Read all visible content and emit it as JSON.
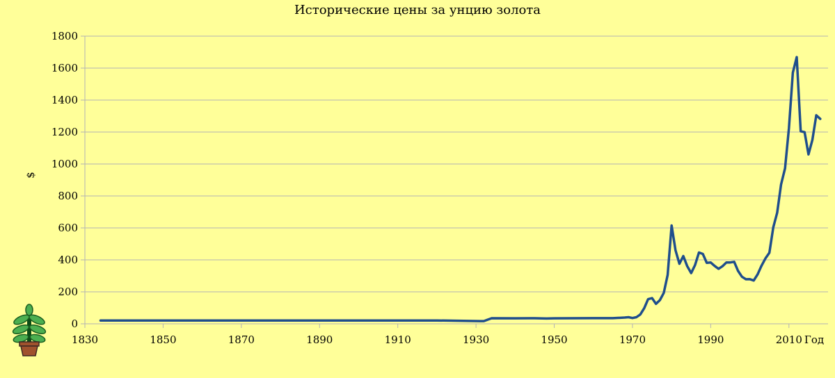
{
  "chart_data": {
    "type": "line",
    "title": "Исторические цены за унцию золота",
    "xlabel": "Год",
    "ylabel": "$",
    "xlim": [
      1830,
      2020
    ],
    "ylim": [
      0,
      1800
    ],
    "x_ticks": [
      1830,
      1850,
      1870,
      1890,
      1910,
      1930,
      1950,
      1970,
      1990,
      2010
    ],
    "y_ticks": [
      0,
      200,
      400,
      600,
      800,
      1000,
      1200,
      1400,
      1600,
      1800
    ],
    "grid": "horizontal",
    "legend": "none",
    "series": [
      {
        "color": "#1f4e8c",
        "points": [
          [
            1834,
            20.67
          ],
          [
            1860,
            20.67
          ],
          [
            1880,
            20.67
          ],
          [
            1900,
            20.67
          ],
          [
            1920,
            20.67
          ],
          [
            1931,
            17.0
          ],
          [
            1932,
            17.0
          ],
          [
            1933,
            26.3
          ],
          [
            1934,
            34.7
          ],
          [
            1940,
            34.5
          ],
          [
            1945,
            34.7
          ],
          [
            1948,
            33.0
          ],
          [
            1950,
            34.5
          ],
          [
            1960,
            35.3
          ],
          [
            1965,
            35.1
          ],
          [
            1968,
            39.3
          ],
          [
            1969,
            41.3
          ],
          [
            1970,
            36.0
          ],
          [
            1971,
            41.2
          ],
          [
            1972,
            58.4
          ],
          [
            1973,
            97.3
          ],
          [
            1974,
            154.0
          ],
          [
            1975,
            161.0
          ],
          [
            1976,
            124.8
          ],
          [
            1977,
            147.8
          ],
          [
            1978,
            193.0
          ],
          [
            1979,
            306.0
          ],
          [
            1980,
            615.0
          ],
          [
            1981,
            460.0
          ],
          [
            1982,
            375.8
          ],
          [
            1983,
            424.0
          ],
          [
            1984,
            360.7
          ],
          [
            1985,
            317.4
          ],
          [
            1986,
            367.7
          ],
          [
            1987,
            446.0
          ],
          [
            1988,
            437.0
          ],
          [
            1989,
            381.4
          ],
          [
            1990,
            383.5
          ],
          [
            1991,
            362.1
          ],
          [
            1992,
            343.8
          ],
          [
            1993,
            359.8
          ],
          [
            1994,
            384.0
          ],
          [
            1995,
            383.8
          ],
          [
            1996,
            387.8
          ],
          [
            1997,
            331.0
          ],
          [
            1998,
            294.2
          ],
          [
            1999,
            278.9
          ],
          [
            2000,
            279.1
          ],
          [
            2001,
            271.0
          ],
          [
            2002,
            309.7
          ],
          [
            2003,
            363.4
          ],
          [
            2004,
            409.7
          ],
          [
            2005,
            444.7
          ],
          [
            2006,
            603.5
          ],
          [
            2007,
            695.4
          ],
          [
            2008,
            872.0
          ],
          [
            2009,
            972.4
          ],
          [
            2010,
            1224.5
          ],
          [
            2011,
            1571.5
          ],
          [
            2012,
            1668.9
          ],
          [
            2013,
            1205.0
          ],
          [
            2014,
            1199.2
          ],
          [
            2015,
            1060.0
          ],
          [
            2016,
            1150.9
          ],
          [
            2017,
            1305.0
          ],
          [
            2018,
            1282.0
          ]
        ]
      }
    ]
  }
}
